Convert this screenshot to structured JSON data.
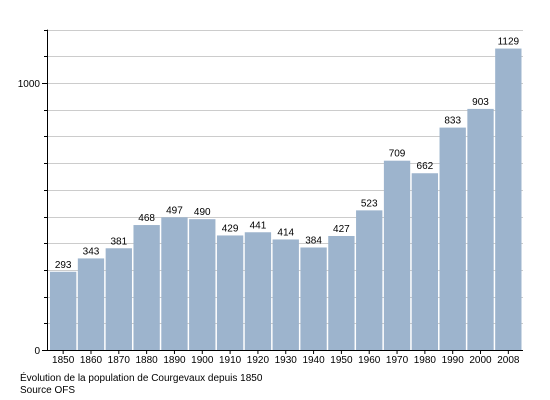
{
  "chart_data": {
    "type": "bar",
    "categories": [
      "1850",
      "1860",
      "1870",
      "1880",
      "1890",
      "1900",
      "1910",
      "1920",
      "1930",
      "1940",
      "1950",
      "1960",
      "1970",
      "1980",
      "1990",
      "2000",
      "2008"
    ],
    "values": [
      293,
      343,
      381,
      468,
      497,
      490,
      429,
      441,
      414,
      384,
      427,
      523,
      709,
      662,
      833,
      903,
      1129
    ],
    "ylim": [
      0,
      1200
    ],
    "yticks": [
      0,
      1000
    ],
    "grid": true,
    "colors": {
      "bar": "#9db4cd",
      "grid": "#999999"
    }
  },
  "caption": {
    "line1": "Évolution de la population de Courgevaux depuis 1850",
    "line2": "Source OFS"
  }
}
